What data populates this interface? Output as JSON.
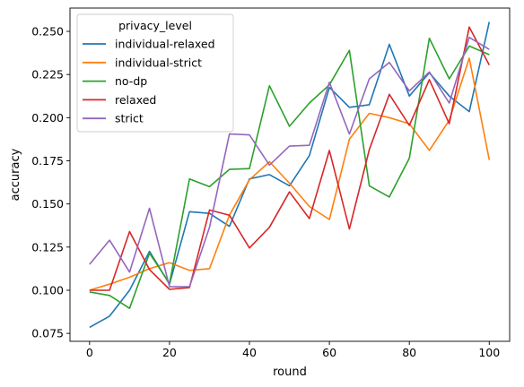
{
  "chart_data": {
    "type": "line",
    "xlabel": "round",
    "ylabel": "accuracy",
    "xlim": [
      -4.9,
      105.1
    ],
    "ylim": [
      0.0704,
      0.2635
    ],
    "xticks": [
      0,
      20,
      40,
      60,
      80,
      100
    ],
    "yticks": [
      0.075,
      0.1,
      0.125,
      0.15,
      0.175,
      0.2,
      0.225,
      0.25
    ],
    "ytick_labels": [
      "0.075",
      "0.100",
      "0.125",
      "0.150",
      "0.175",
      "0.200",
      "0.225",
      "0.250"
    ],
    "grid": false,
    "legend": {
      "title": "privacy_level",
      "placement": "top-left"
    },
    "x": [
      0,
      5,
      10,
      15,
      20,
      25,
      30,
      35,
      40,
      45,
      50,
      55,
      60,
      65,
      70,
      75,
      80,
      85,
      90,
      95,
      100
    ],
    "series": [
      {
        "name": "individual-relaxed",
        "color": "#1f77b4",
        "values": [
          0.0785,
          0.085,
          0.1,
          0.1225,
          0.1035,
          0.1455,
          0.1445,
          0.137,
          0.1645,
          0.167,
          0.1605,
          0.178,
          0.2175,
          0.206,
          0.2075,
          0.2425,
          0.2125,
          0.226,
          0.2125,
          0.2035,
          0.2555
        ]
      },
      {
        "name": "individual-strict",
        "color": "#ff7f0e",
        "values": [
          0.1,
          0.1035,
          0.1075,
          0.1125,
          0.116,
          0.1115,
          0.1125,
          0.1435,
          0.164,
          0.1745,
          0.162,
          0.1485,
          0.141,
          0.1875,
          0.2025,
          0.2,
          0.1965,
          0.181,
          0.1985,
          0.2345,
          0.1755
        ]
      },
      {
        "name": "no-dp",
        "color": "#2ca02c",
        "values": [
          0.099,
          0.097,
          0.0895,
          0.1215,
          0.104,
          0.1645,
          0.16,
          0.17,
          0.1705,
          0.2185,
          0.195,
          0.2085,
          0.219,
          0.239,
          0.1605,
          0.154,
          0.1765,
          0.246,
          0.2225,
          0.2415,
          0.2365
        ]
      },
      {
        "name": "relaxed",
        "color": "#d62728",
        "values": [
          0.1,
          0.1,
          0.134,
          0.112,
          0.1005,
          0.1015,
          0.1465,
          0.1435,
          0.1245,
          0.1365,
          0.157,
          0.1415,
          0.181,
          0.1355,
          0.1815,
          0.2135,
          0.1955,
          0.222,
          0.1965,
          0.2525,
          0.2305
        ]
      },
      {
        "name": "strict",
        "color": "#9467bd",
        "values": [
          0.115,
          0.129,
          0.1105,
          0.1475,
          0.102,
          0.102,
          0.1365,
          0.1905,
          0.19,
          0.1725,
          0.1835,
          0.184,
          0.2205,
          0.1905,
          0.2225,
          0.232,
          0.2155,
          0.2265,
          0.2085,
          0.2465,
          0.2395
        ]
      }
    ]
  }
}
